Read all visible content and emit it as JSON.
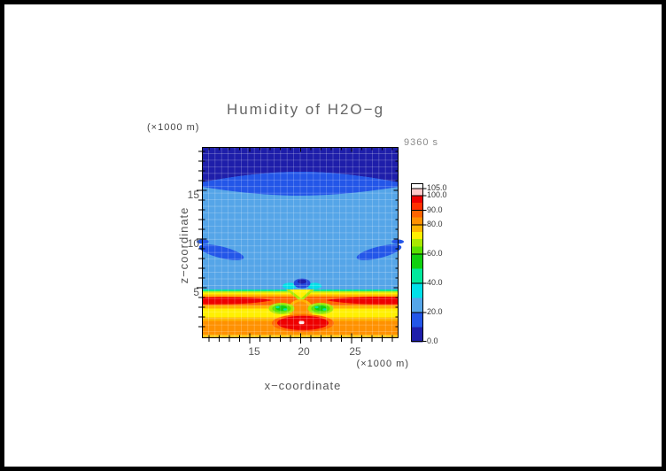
{
  "title": "Humidity of H2O−g",
  "time_label": "9360 s",
  "axes": {
    "y_unit": "(×1000 m)",
    "x_unit": "(×1000 m)",
    "xlabel": "x−coordinate",
    "ylabel": "z−coordinate",
    "x_ticks": [
      "15",
      "20",
      "25"
    ],
    "z_ticks": [
      "15",
      "10",
      "5"
    ]
  },
  "colorbar": {
    "labels": [
      "105.0",
      "100.0",
      "90.0",
      "80.0",
      "60.0",
      "40.0",
      "20.0",
      "0.0"
    ],
    "segments": [
      {
        "range": ">105",
        "color": "#FFFFFF"
      },
      {
        "range": "100-105",
        "color": "#FFC8C8"
      },
      {
        "range": "95-100",
        "color": "#EE0000"
      },
      {
        "range": "90-95",
        "color": "#FF3000"
      },
      {
        "range": "85-90",
        "color": "#FF6400"
      },
      {
        "range": "80-85",
        "color": "#FF9100"
      },
      {
        "range": "75-80",
        "color": "#FFB400"
      },
      {
        "range": "70-75",
        "color": "#FFF000"
      },
      {
        "range": "65-70",
        "color": "#A8E800"
      },
      {
        "range": "60-65",
        "color": "#58E000"
      },
      {
        "range": "50-60",
        "color": "#10D010"
      },
      {
        "range": "40-50",
        "color": "#00E89C"
      },
      {
        "range": "30-40",
        "color": "#00E0E8"
      },
      {
        "range": "20-30",
        "color": "#55A5E8"
      },
      {
        "range": "10-20",
        "color": "#2356E8"
      },
      {
        "range": "0-10",
        "color": "#1E1EAA"
      }
    ]
  },
  "colors": {
    "navy": "#1E1EAA",
    "blue": "#2356E8",
    "blue2": "#2348DC",
    "sky": "#55A5E8",
    "cyan": "#00E0E8",
    "spring": "#00E89C",
    "green": "#10D010",
    "lightgreen": "#58E000",
    "chartreuse": "#A8E800",
    "yellow": "#FFF000",
    "amber": "#FFB400",
    "amber2": "#FFC31E",
    "orange": "#FF9100",
    "dkorange": "#FF6400",
    "red": "#EE0000",
    "whitespot": "#FFEAEA",
    "frame": "#000000"
  },
  "chart_data": {
    "type": "heatmap",
    "title": "Humidity of H2O−g",
    "xlabel": "x−coordinate (×1000 m)",
    "ylabel": "z−coordinate (×1000 m)",
    "time": "9360 s",
    "xlim": [
      10.4,
      29.6
    ],
    "ylim": [
      0.3,
      19.6
    ],
    "x_ticks": [
      15,
      20,
      25
    ],
    "z_ticks": [
      5,
      10,
      15
    ],
    "grid": true,
    "legend_position": "right",
    "colorbar_levels": [
      0,
      10,
      20,
      30,
      40,
      50,
      60,
      65,
      70,
      75,
      80,
      85,
      90,
      95,
      100,
      105
    ],
    "colorbar_tick_labels": [
      105.0,
      100.0,
      90.0,
      80.0,
      60.0,
      40.0,
      20.0,
      0.0
    ],
    "features": [
      {
        "region": "top band, z≈17.5–19.5, full width",
        "humidity": "0–10"
      },
      {
        "region": "lens band z≈15.5–17.5, thickest at mid x",
        "humidity": "10–20"
      },
      {
        "region": "bulk region z≈5.5–15.5",
        "humidity": "20–30"
      },
      {
        "region": "two slanted blobs at z≈8–9.5, x≈11–14.5 and x≈26–29.5",
        "humidity": "10–20"
      },
      {
        "region": "small feature x≈19–21.5, z≈5.2–5.8 (blue core, cyan wings)",
        "humidity": "10–40"
      },
      {
        "region": "sharp transition line z≈4.8–5.0 (green/chartreuse)",
        "humidity": "40–70"
      },
      {
        "region": "hot band z≈4.0–4.8, red maxima left and right of centre",
        "humidity": "85–100"
      },
      {
        "region": "green pockets x≈17.5–19.5 and x≈21–23, z≈3.2–4.0",
        "humidity": "40–70"
      },
      {
        "region": "yellow band z≈2.5–3.5, full width",
        "humidity": "70–80"
      },
      {
        "region": "orange band z≈0.5–2.5, full width",
        "humidity": "80–85"
      },
      {
        "region": "hot spot x≈19–22, z≈1.2–2.3 with white core at x≈20.2, z≈1.8",
        "humidity": "95–105+"
      },
      {
        "region": "bottom strip z≈0–0.4",
        "humidity": "75–80"
      }
    ]
  }
}
